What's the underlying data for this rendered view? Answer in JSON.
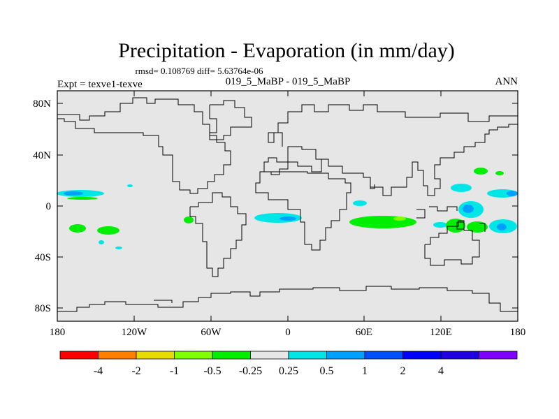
{
  "title": "Precipitation - Evaporation (in mm/day)",
  "stats_line": "rmsd= 0.108769 diff= 5.63764e-06",
  "left_label": "Expt = texve1-texve",
  "center_label": "019_5_MaBP - 019_5_MaBP",
  "right_label": "ANN",
  "y_ticks": [
    "80N",
    "40N",
    "0",
    "40S",
    "80S"
  ],
  "x_ticks": [
    "180",
    "120W",
    "60W",
    "0",
    "60E",
    "120E",
    "180"
  ],
  "colorbar": {
    "colors": [
      "#ff0000",
      "#ff8000",
      "#e6dc00",
      "#80ff00",
      "#00ee00",
      "#e6e6e6",
      "#00e6e6",
      "#00a0ff",
      "#0050ff",
      "#0000ff",
      "#2000e0",
      "#8000ff"
    ],
    "labels": [
      "-4",
      "-2",
      "-1",
      "-0.5",
      "-0.25",
      "0.25",
      "0.5",
      "1",
      "2",
      "4"
    ]
  },
  "colors": {
    "ocean_fill": "#e6e6e6",
    "coast": "#000000"
  }
}
